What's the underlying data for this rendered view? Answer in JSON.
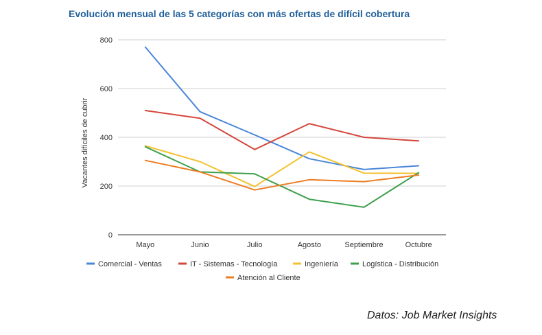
{
  "source_label": "Datos",
  "source_name": "Job Market Insights",
  "chart_data": {
    "type": "line",
    "title": "Evolución mensual de las 5 categorías con más ofertas de difícil cobertura",
    "xlabel": "",
    "ylabel": "Vacantes difíciles de cubrir",
    "ylim": [
      0,
      800
    ],
    "yticks": [
      0,
      200,
      400,
      600,
      800
    ],
    "grid": true,
    "legend_position": "bottom",
    "categories": [
      "Mayo",
      "Junio",
      "Julio",
      "Agosto",
      "Septiembre",
      "Octubre"
    ],
    "series": [
      {
        "name": "Comercial - Ventas",
        "color": "#4a86d8",
        "values": [
          770,
          505,
          410,
          312,
          268,
          283
        ]
      },
      {
        "name": "IT - Sistemas - Tecnología",
        "color": "#d4473a",
        "values": [
          510,
          478,
          350,
          456,
          400,
          385
        ]
      },
      {
        "name": "Ingeniería",
        "color": "#f2c12e",
        "values": [
          365,
          300,
          198,
          340,
          253,
          252
        ]
      },
      {
        "name": "Logística - Distribución",
        "color": "#3ea04e",
        "values": [
          361,
          258,
          250,
          146,
          113,
          255
        ]
      },
      {
        "name": "Atención al Cliente",
        "color": "#ec7d22",
        "values": [
          305,
          258,
          184,
          226,
          218,
          245
        ]
      }
    ]
  }
}
